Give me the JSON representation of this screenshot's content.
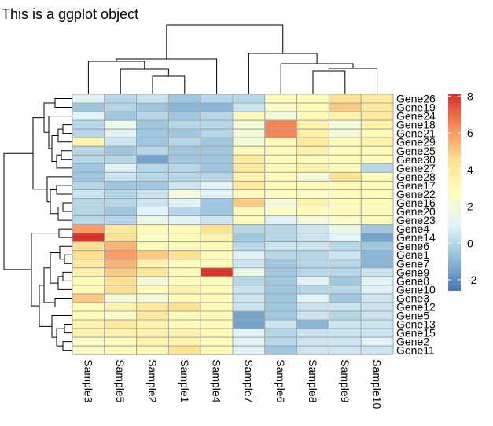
{
  "chart_data": {
    "type": "heatmap",
    "title": "This is a ggplot object",
    "columns": [
      "Sample3",
      "Sample5",
      "Sample2",
      "Sample1",
      "Sample4",
      "Sample7",
      "Sample6",
      "Sample8",
      "Sample9",
      "Sample10"
    ],
    "rows": [
      "Gene26",
      "Gene19",
      "Gene24",
      "Gene18",
      "Gene21",
      "Gene29",
      "Gene25",
      "Gene30",
      "Gene27",
      "Gene28",
      "Gene17",
      "Gene22",
      "Gene16",
      "Gene20",
      "Gene23",
      "Gene4",
      "Gene14",
      "Gene6",
      "Gene1",
      "Gene7",
      "Gene9",
      "Gene8",
      "Gene10",
      "Gene3",
      "Gene12",
      "Gene5",
      "Gene13",
      "Gene15",
      "Gene2",
      "Gene11"
    ],
    "values": [
      [
        1,
        0,
        0.5,
        -0.5,
        0,
        0,
        3,
        3,
        4.5,
        4
      ],
      [
        -0.5,
        0,
        -0.5,
        -1,
        -1,
        0.5,
        2.5,
        3,
        5,
        4
      ],
      [
        1,
        -0.5,
        0,
        -0.5,
        0,
        3,
        2,
        3,
        3.5,
        4
      ],
      [
        0,
        1.5,
        -0.5,
        0,
        0,
        2,
        6.5,
        3.5,
        2,
        3.5
      ],
      [
        0,
        1,
        -0.5,
        -0.5,
        0,
        2,
        6.5,
        3.5,
        2,
        3
      ],
      [
        3.5,
        0.5,
        -0.5,
        0,
        -0.5,
        2,
        3,
        4,
        3,
        3.5
      ],
      [
        0,
        -0.5,
        0,
        -0.5,
        -0.5,
        3,
        3,
        3.5,
        3,
        3
      ],
      [
        0,
        0,
        -1.5,
        -0.5,
        -0.5,
        4,
        3,
        3,
        3,
        3
      ],
      [
        -0.5,
        1,
        0,
        0,
        -0.5,
        4,
        3,
        3.5,
        3,
        0
      ],
      [
        -0.5,
        0.5,
        0,
        0,
        0,
        3.5,
        3,
        2,
        4.5,
        3
      ],
      [
        0,
        -0.5,
        -0.5,
        0.5,
        1,
        4,
        3,
        3,
        3,
        3
      ],
      [
        0.5,
        0,
        0.5,
        2,
        1,
        3,
        3,
        2.5,
        3,
        3
      ],
      [
        0,
        0,
        0.5,
        1,
        -0.5,
        5,
        2,
        3.5,
        3,
        3
      ],
      [
        0,
        -0.5,
        1,
        0,
        -0.5,
        3,
        2.5,
        3,
        3,
        3
      ],
      [
        0,
        0,
        1.5,
        1,
        0.5,
        3,
        1,
        2,
        2.5,
        3
      ],
      [
        6,
        4,
        3,
        3,
        4.5,
        0,
        0,
        0.5,
        1.5,
        -0.5
      ],
      [
        8,
        4.5,
        2.5,
        3,
        3.5,
        -0.5,
        0,
        0.5,
        1,
        -1.5
      ],
      [
        4.5,
        5.5,
        3,
        3,
        3,
        0,
        0.5,
        0.5,
        0,
        -0.5
      ],
      [
        4.5,
        6,
        5,
        4.5,
        3,
        1,
        0,
        0,
        0.5,
        -1
      ],
      [
        4,
        5.5,
        3.5,
        3,
        3,
        0.5,
        -0.5,
        0,
        0,
        -1
      ],
      [
        3.5,
        5,
        4,
        3,
        8,
        1.5,
        -0.5,
        0,
        0,
        0.5
      ],
      [
        3,
        4.5,
        2,
        3,
        3,
        0,
        -0.5,
        1,
        -0.5,
        1
      ],
      [
        3,
        4.5,
        3,
        3.5,
        3,
        0.5,
        -0.5,
        0,
        0,
        1
      ],
      [
        5,
        2,
        2,
        3,
        3,
        0.5,
        -0.5,
        1,
        -0.5,
        0.5
      ],
      [
        3,
        3.5,
        4,
        4.5,
        3,
        0.5,
        -0.5,
        0.5,
        0.5,
        0.5
      ],
      [
        3,
        2.5,
        4,
        3,
        3,
        -1.5,
        -0.5,
        0.5,
        0,
        0.5
      ],
      [
        3.5,
        4,
        3.5,
        3,
        3,
        -1.5,
        0.5,
        -1,
        0.5,
        0.5
      ],
      [
        3.5,
        3.5,
        3.5,
        3.5,
        3,
        1,
        0,
        0.5,
        0.5,
        0.5
      ],
      [
        2.5,
        3,
        3.5,
        3.5,
        3,
        1,
        0,
        0.5,
        0.5,
        1
      ],
      [
        2.5,
        3,
        3,
        4.5,
        3,
        1,
        -0.5,
        0.5,
        0.5,
        0.5
      ]
    ],
    "legend": {
      "ticks": [
        8,
        6,
        4,
        2,
        0,
        -2
      ],
      "min": -2.6,
      "max": 8.1,
      "colors": [
        "#4575b4",
        "#91bfdb",
        "#e0f3f8",
        "#ffffbf",
        "#fee090",
        "#fc8d59",
        "#d73027"
      ]
    },
    "row_dendrogram": true,
    "column_dendrogram": true
  },
  "colors": {
    "cell_border": "#a8a8a8",
    "tree": "#000000"
  }
}
